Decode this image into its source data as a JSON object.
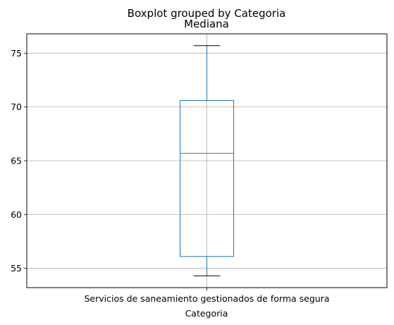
{
  "chart_data": {
    "type": "box",
    "suptitle": "Boxplot grouped by Categoria",
    "title": "Mediana",
    "xlabel": "Categoria",
    "ylabel": "",
    "categories": [
      "Servicios de saneamiento gestionados de forma segura"
    ],
    "boxes": [
      {
        "category": "Servicios de saneamiento gestionados de forma segura",
        "whisker_low": 54.3,
        "q1": 56.1,
        "median": 65.7,
        "q3": 70.6,
        "whisker_high": 75.7
      }
    ],
    "ylim": [
      53.2,
      76.8
    ],
    "yticks": [
      55,
      60,
      65,
      70,
      75
    ],
    "ytick_labels": [
      "55",
      "60",
      "65",
      "70",
      "75"
    ],
    "grid": true,
    "colors": {
      "box": "#1f77b4",
      "median": "#2ca02c",
      "caps": "#000000",
      "grid": "#b0b0b0"
    }
  }
}
